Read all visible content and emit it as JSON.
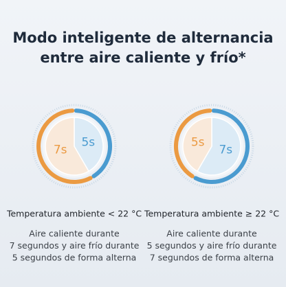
{
  "header": {
    "title_lines": [
      "Modo inteligente de alternancia",
      "entre aire caliente y frío*"
    ]
  },
  "panels": [
    {
      "dial": {
        "segments": [
          {
            "value": 5,
            "label": "5s",
            "color": "#4a9bd0"
          },
          {
            "value": 7,
            "label": "7s",
            "color": "#eb9a42"
          }
        ]
      },
      "condition": "Temperatura ambiente < 22 °C",
      "description_lines": [
        "Aire caliente durante",
        "7 segundos y aire frío durante",
        "5 segundos de forma alterna"
      ]
    },
    {
      "dial": {
        "segments": [
          {
            "value": 7,
            "label": "7s",
            "color": "#4a9bd0"
          },
          {
            "value": 5,
            "label": "5s",
            "color": "#eb9a42"
          }
        ]
      },
      "condition": "Temperatura ambiente ≥ 22 °C",
      "description_lines": [
        "Aire caliente durante",
        "5 segundos y aire frío durante",
        "7 segundos de forma alterna"
      ]
    }
  ]
}
